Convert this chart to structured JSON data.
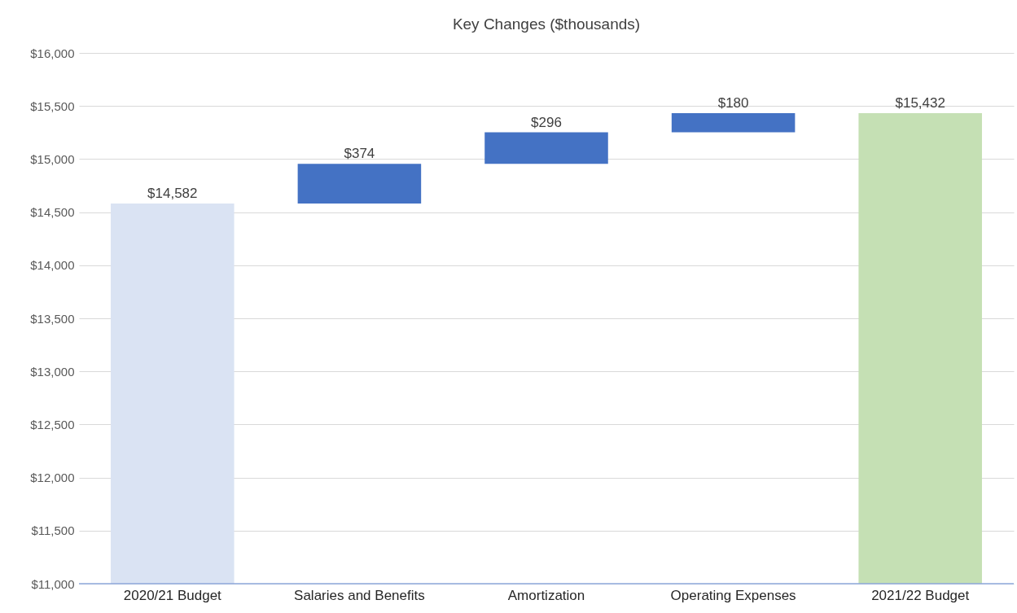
{
  "chart_data": {
    "type": "bar",
    "title": "Key Changes ($thousands)",
    "categories": [
      "2020/21 Budget",
      "Salaries and Benefits",
      "Amortization",
      "Operating Expenses",
      "2021/22 Budget"
    ],
    "values": [
      14582,
      374,
      296,
      180,
      15432
    ],
    "base": [
      0,
      14582,
      14956,
      15252,
      0
    ],
    "colors": [
      "#dae3f3",
      "#4472c4",
      "#4472c4",
      "#4472c4",
      "#c5e0b4"
    ],
    "value_labels": [
      "$14,582",
      "$374",
      "$296",
      "$180",
      "$15,432"
    ],
    "ylim": [
      11000,
      16000
    ],
    "yticks": [
      {
        "value": 11000,
        "label": "$11,000"
      },
      {
        "value": 11500,
        "label": "$11,500"
      },
      {
        "value": 12000,
        "label": "$12,000"
      },
      {
        "value": 12500,
        "label": "$12,500"
      },
      {
        "value": 13000,
        "label": "$13,000"
      },
      {
        "value": 13500,
        "label": "$13,500"
      },
      {
        "value": 14000,
        "label": "$14,000"
      },
      {
        "value": 14500,
        "label": "$14,500"
      },
      {
        "value": 15000,
        "label": "$15,000"
      },
      {
        "value": 15500,
        "label": "$15,500"
      },
      {
        "value": 16000,
        "label": "$16,000"
      }
    ],
    "grid": "y"
  }
}
